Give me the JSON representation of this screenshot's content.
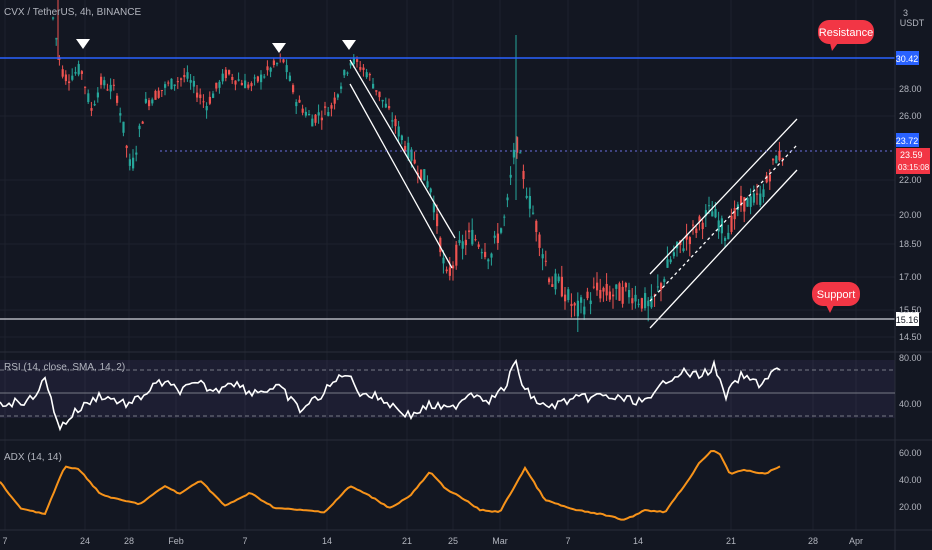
{
  "header": {
    "symbol": "CVX / TetherUS",
    "interval": "4h",
    "exchange": "BINANCE",
    "currency": "USDT"
  },
  "colors": {
    "background": "#131722",
    "up": "#26a69a",
    "down": "#ef5350",
    "resistance_line": "#2962ff",
    "support_line": "#d1d4dc",
    "annotation_red": "#f23645",
    "rsi_line": "#ffffff",
    "adx_line": "#f7931a",
    "channel": "#ffffff"
  },
  "annotations": {
    "resistance": "Resistance",
    "support": "Support"
  },
  "price_scale": {
    "resistance_badge": "30.42",
    "ask_badge": "23.72",
    "last_badge": "23.59",
    "countdown": "03:15:08",
    "support_badge": "15.16"
  },
  "chart_data": [
    {
      "type": "candlestick",
      "symbol": "CVX / TetherUS",
      "interval": "4h",
      "y_ticks": [
        "3",
        "28.00",
        "26.00",
        "22.00",
        "20.00",
        "18.50",
        "17.00",
        "15.50",
        "14.50"
      ],
      "x_ticks": [
        "7",
        "24",
        "28",
        "Feb",
        "7",
        "14",
        "21",
        "25",
        "Mar",
        "7",
        "14",
        "21",
        "28",
        "Apr"
      ],
      "horizontal_levels": [
        {
          "label": "Resistance",
          "value": 30.42
        },
        {
          "label": "Support",
          "value": 15.16
        },
        {
          "label": "Last price",
          "value": 23.59
        }
      ],
      "key_points": [
        {
          "date": "Jan 23",
          "price": 30.6,
          "marker": "triangle-down"
        },
        {
          "date": "Feb 10",
          "price": 30.4,
          "marker": "triangle-down"
        },
        {
          "date": "Feb 16",
          "price": 30.4,
          "marker": "triangle-down"
        },
        {
          "date": "Feb 24",
          "price": 16.6
        },
        {
          "date": "Mar 2",
          "price": 25.0
        },
        {
          "date": "Mar 6",
          "price": 15.1
        },
        {
          "date": "Mar 14",
          "price": 15.3
        },
        {
          "date": "Mar 24",
          "price": 23.6
        }
      ]
    },
    {
      "type": "line",
      "title": "RSI (14, close, SMA, 14, 2)",
      "y_ticks": [
        "80.00",
        "40.00"
      ],
      "series": [
        {
          "name": "RSI",
          "last_value": 76
        }
      ]
    },
    {
      "type": "line",
      "title": "ADX (14, 14)",
      "y_ticks": [
        "60.00",
        "40.00",
        "20.00"
      ],
      "series": [
        {
          "name": "ADX",
          "last_value": 51
        }
      ]
    }
  ]
}
